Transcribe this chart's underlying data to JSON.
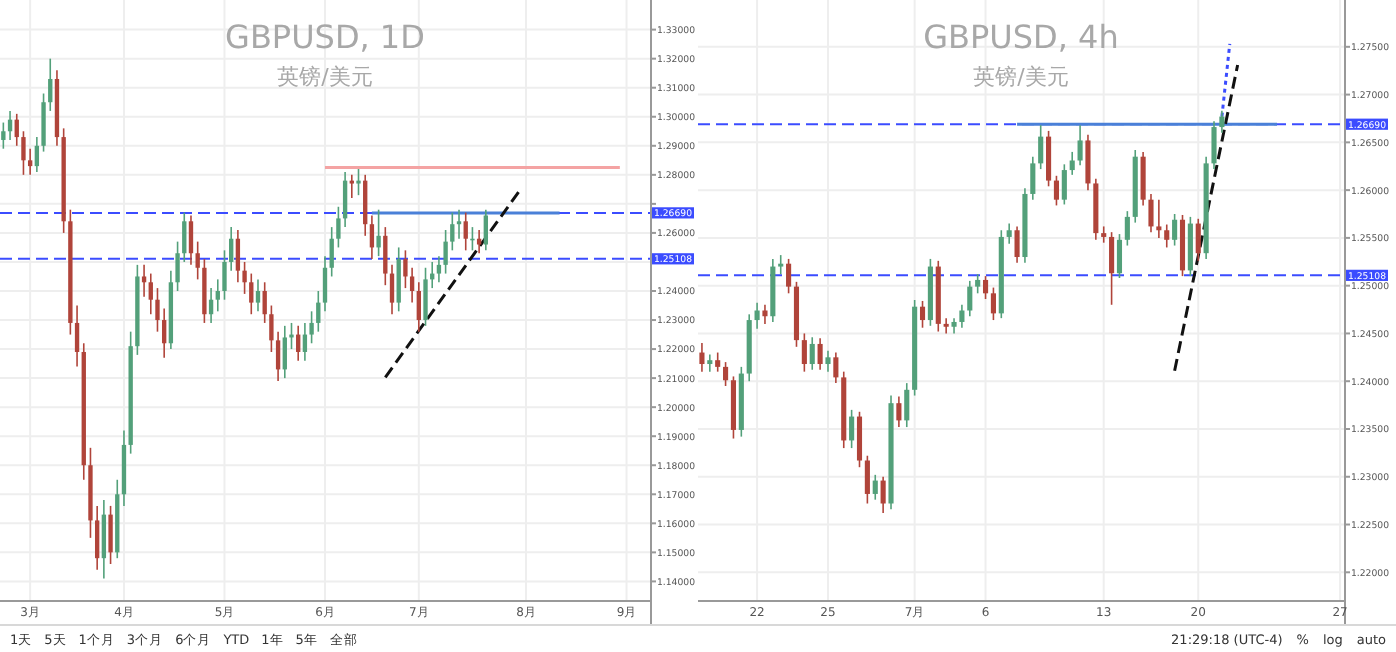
{
  "chart_data": [
    {
      "type": "candlestick",
      "title": "GBPUSD, 1D",
      "subtitle": "英镑/美元",
      "categories": [
        null,
        null,
        null,
        null,
        "3月",
        null,
        null,
        null,
        null,
        null,
        null,
        null,
        null,
        null,
        null,
        null,
        null,
        null,
        "4月",
        null,
        null,
        null,
        null,
        null,
        null,
        null,
        null,
        null,
        null,
        null,
        null,
        null,
        null,
        "5月",
        null,
        null,
        null,
        null,
        null,
        null,
        null,
        null,
        null,
        null,
        null,
        null,
        null,
        null,
        "6月",
        null,
        null,
        null,
        null,
        null,
        null,
        null,
        null,
        null,
        null,
        null,
        null,
        null,
        "7月",
        null,
        null,
        null,
        null,
        null,
        null,
        null,
        null,
        null,
        null,
        null,
        null,
        null,
        null,
        null,
        "8月",
        null,
        null,
        null,
        null,
        null,
        null,
        null,
        null,
        null,
        null,
        null,
        null,
        null,
        null,
        "9月",
        null,
        null,
        null
      ],
      "ohlc": [
        [
          1.292,
          1.298,
          1.289,
          1.295
        ],
        [
          1.295,
          1.302,
          1.292,
          1.299
        ],
        [
          1.299,
          1.301,
          1.29,
          1.293
        ],
        [
          1.293,
          1.295,
          1.28,
          1.285
        ],
        [
          1.285,
          1.289,
          1.28,
          1.283
        ],
        [
          1.283,
          1.293,
          1.281,
          1.29
        ],
        [
          1.29,
          1.308,
          1.288,
          1.305
        ],
        [
          1.305,
          1.32,
          1.302,
          1.313
        ],
        [
          1.313,
          1.316,
          1.29,
          1.293
        ],
        [
          1.293,
          1.296,
          1.26,
          1.264
        ],
        [
          1.264,
          1.268,
          1.225,
          1.229
        ],
        [
          1.229,
          1.235,
          1.214,
          1.219
        ],
        [
          1.219,
          1.222,
          1.175,
          1.18
        ],
        [
          1.18,
          1.186,
          1.155,
          1.161
        ],
        [
          1.161,
          1.166,
          1.144,
          1.148
        ],
        [
          1.148,
          1.168,
          1.141,
          1.163
        ],
        [
          1.163,
          1.166,
          1.146,
          1.15
        ],
        [
          1.15,
          1.175,
          1.148,
          1.17
        ],
        [
          1.17,
          1.192,
          1.166,
          1.187
        ],
        [
          1.187,
          1.226,
          1.184,
          1.221
        ],
        [
          1.221,
          1.249,
          1.218,
          1.245
        ],
        [
          1.245,
          1.249,
          1.238,
          1.243
        ],
        [
          1.243,
          1.246,
          1.232,
          1.237
        ],
        [
          1.237,
          1.241,
          1.226,
          1.23
        ],
        [
          1.23,
          1.234,
          1.217,
          1.222
        ],
        [
          1.222,
          1.247,
          1.22,
          1.243
        ],
        [
          1.243,
          1.257,
          1.24,
          1.253
        ],
        [
          1.253,
          1.267,
          1.25,
          1.264
        ],
        [
          1.264,
          1.266,
          1.249,
          1.253
        ],
        [
          1.253,
          1.257,
          1.244,
          1.248
        ],
        [
          1.248,
          1.251,
          1.229,
          1.232
        ],
        [
          1.232,
          1.241,
          1.229,
          1.237
        ],
        [
          1.237,
          1.244,
          1.233,
          1.24
        ],
        [
          1.24,
          1.254,
          1.237,
          1.25
        ],
        [
          1.25,
          1.262,
          1.247,
          1.258
        ],
        [
          1.258,
          1.261,
          1.243,
          1.247
        ],
        [
          1.247,
          1.25,
          1.239,
          1.243
        ],
        [
          1.243,
          1.246,
          1.232,
          1.236
        ],
        [
          1.236,
          1.244,
          1.233,
          1.24
        ],
        [
          1.24,
          1.243,
          1.229,
          1.232
        ],
        [
          1.232,
          1.235,
          1.219,
          1.223
        ],
        [
          1.223,
          1.226,
          1.209,
          1.213
        ],
        [
          1.213,
          1.228,
          1.21,
          1.224
        ],
        [
          1.224,
          1.229,
          1.22,
          1.225
        ],
        [
          1.225,
          1.228,
          1.216,
          1.219
        ],
        [
          1.219,
          1.229,
          1.216,
          1.225
        ],
        [
          1.225,
          1.233,
          1.222,
          1.229
        ],
        [
          1.229,
          1.24,
          1.226,
          1.236
        ],
        [
          1.236,
          1.252,
          1.233,
          1.248
        ],
        [
          1.248,
          1.262,
          1.245,
          1.258
        ],
        [
          1.258,
          1.269,
          1.255,
          1.265
        ],
        [
          1.265,
          1.281,
          1.262,
          1.278
        ],
        [
          1.278,
          1.28,
          1.272,
          1.277
        ],
        [
          1.277,
          1.282,
          1.273,
          1.278
        ],
        [
          1.278,
          1.28,
          1.259,
          1.263
        ],
        [
          1.263,
          1.266,
          1.251,
          1.255
        ],
        [
          1.255,
          1.268,
          1.252,
          1.259
        ],
        [
          1.259,
          1.262,
          1.242,
          1.246
        ],
        [
          1.246,
          1.249,
          1.232,
          1.236
        ],
        [
          1.236,
          1.255,
          1.233,
          1.251
        ],
        [
          1.251,
          1.254,
          1.241,
          1.245
        ],
        [
          1.245,
          1.248,
          1.236,
          1.24
        ],
        [
          1.24,
          1.243,
          1.226,
          1.23
        ],
        [
          1.23,
          1.248,
          1.228,
          1.244
        ],
        [
          1.244,
          1.25,
          1.241,
          1.246
        ],
        [
          1.246,
          1.252,
          1.243,
          1.249
        ],
        [
          1.249,
          1.261,
          1.246,
          1.257
        ],
        [
          1.257,
          1.267,
          1.254,
          1.263
        ],
        [
          1.263,
          1.268,
          1.258,
          1.264
        ],
        [
          1.264,
          1.267,
          1.254,
          1.258
        ],
        [
          1.258,
          1.262,
          1.254,
          1.258
        ],
        [
          1.258,
          1.261,
          1.253,
          1.256
        ],
        [
          1.256,
          1.268,
          1.254,
          1.266
        ],
        null,
        null,
        null,
        null,
        null,
        null,
        null,
        null,
        null,
        null,
        null,
        null,
        null,
        null,
        null,
        null,
        null,
        null,
        null,
        null,
        null,
        null,
        null,
        null
      ],
      "series": [
        {
          "type": "line",
          "color": "#f4a3a3",
          "line_style": "solid",
          "values": [
            null,
            null,
            null,
            null,
            null,
            null,
            null,
            null,
            null,
            null,
            null,
            null,
            null,
            null,
            null,
            null,
            null,
            null,
            null,
            null,
            null,
            null,
            null,
            null,
            null,
            null,
            null,
            null,
            null,
            null,
            null,
            null,
            null,
            null,
            null,
            null,
            null,
            null,
            null,
            null,
            null,
            null,
            null,
            null,
            null,
            null,
            null,
            null,
            1.2825,
            null,
            null,
            null,
            null,
            null,
            null,
            null,
            null,
            null,
            null,
            null,
            null,
            null,
            null,
            null,
            null,
            null,
            null,
            null,
            null,
            null,
            null,
            null,
            null,
            null,
            null,
            null,
            null,
            null,
            null,
            null,
            null,
            null,
            null,
            null,
            null,
            null,
            null,
            null,
            null,
            null,
            null,
            null,
            1.2825,
            null,
            null,
            null,
            null
          ]
        },
        {
          "type": "line",
          "color": "#4a80d8",
          "line_style": "solid",
          "values": [
            null,
            null,
            null,
            null,
            null,
            null,
            null,
            null,
            null,
            null,
            null,
            null,
            null,
            null,
            null,
            null,
            null,
            null,
            null,
            null,
            null,
            null,
            null,
            null,
            null,
            null,
            null,
            null,
            null,
            null,
            null,
            null,
            null,
            null,
            null,
            null,
            null,
            null,
            null,
            null,
            null,
            null,
            null,
            null,
            null,
            null,
            null,
            null,
            null,
            null,
            null,
            null,
            null,
            null,
            null,
            1.2669,
            null,
            null,
            null,
            null,
            null,
            null,
            null,
            null,
            null,
            null,
            null,
            null,
            null,
            null,
            null,
            null,
            null,
            null,
            null,
            null,
            null,
            null,
            null,
            null,
            null,
            null,
            null,
            1.2669,
            null,
            null,
            null,
            null,
            null,
            null,
            null,
            null,
            null,
            null,
            null,
            null,
            null
          ]
        },
        {
          "type": "line",
          "color": "#111111",
          "line_style": "dashed",
          "values": [
            null,
            null,
            null,
            null,
            null,
            null,
            null,
            null,
            null,
            null,
            null,
            null,
            null,
            null,
            null,
            null,
            null,
            null,
            null,
            null,
            null,
            null,
            null,
            null,
            null,
            null,
            null,
            null,
            null,
            null,
            null,
            null,
            null,
            null,
            null,
            null,
            null,
            null,
            null,
            null,
            null,
            null,
            null,
            null,
            null,
            null,
            null,
            null,
            null,
            null,
            null,
            null,
            null,
            null,
            null,
            null,
            null,
            1.2103,
            null,
            null,
            null,
            null,
            null,
            null,
            null,
            null,
            null,
            null,
            null,
            null,
            null,
            null,
            null,
            null,
            null,
            null,
            null,
            1.2744,
            null,
            null,
            null,
            null,
            null,
            null,
            null,
            null,
            null,
            null,
            null,
            null,
            null,
            null,
            null,
            null,
            null,
            null,
            null
          ]
        }
      ],
      "ref_lines": [
        {
          "axis": "y",
          "value": 1.2669,
          "label": "1.26690",
          "color": "#3b4cff",
          "line_style": "dashed"
        },
        {
          "axis": "y",
          "value": 1.25108,
          "label": "1.25108",
          "color": "#3b4cff",
          "line_style": "dashed"
        }
      ],
      "ylim": [
        1.1336,
        1.3402
      ],
      "yticks": [
        {
          "value": 1.14,
          "label": "1.14000"
        },
        {
          "value": 1.15,
          "label": "1.15000"
        },
        {
          "value": 1.16,
          "label": "1.16000"
        },
        {
          "value": 1.17,
          "label": "1.17000"
        },
        {
          "value": 1.18,
          "label": "1.18000"
        },
        {
          "value": 1.19,
          "label": "1.19000"
        },
        {
          "value": 1.2,
          "label": "1.20000"
        },
        {
          "value": 1.21,
          "label": "1.21000"
        },
        {
          "value": 1.22,
          "label": "1.22000"
        },
        {
          "value": 1.23,
          "label": "1.23000"
        },
        {
          "value": 1.24,
          "label": "1.24000"
        },
        {
          "value": 1.25,
          "label": null
        },
        {
          "value": 1.26,
          "label": "1.26000"
        },
        {
          "value": 1.27,
          "label": null
        },
        {
          "value": 1.28,
          "label": "1.28000"
        },
        {
          "value": 1.29,
          "label": "1.29000"
        },
        {
          "value": 1.3,
          "label": "1.30000"
        },
        {
          "value": 1.31,
          "label": "1.31000"
        },
        {
          "value": 1.32,
          "label": "1.32000"
        },
        {
          "value": 1.33,
          "label": "1.33000"
        }
      ],
      "grid": true,
      "annotations": [
        "1天",
        "5天",
        "1个月",
        "3个月",
        "6个月",
        "YTD",
        "1年",
        "5年",
        "全部"
      ]
    },
    {
      "type": "candlestick",
      "title": "GBPUSD, 4h",
      "subtitle": "英镑/美元",
      "categories": [
        null,
        null,
        null,
        null,
        null,
        null,
        null,
        "22",
        null,
        null,
        null,
        null,
        null,
        null,
        null,
        null,
        "25",
        null,
        null,
        null,
        null,
        null,
        null,
        null,
        null,
        null,
        null,
        "7月",
        null,
        null,
        null,
        null,
        null,
        null,
        null,
        null,
        "6",
        null,
        null,
        null,
        null,
        null,
        null,
        null,
        null,
        null,
        null,
        null,
        null,
        null,
        null,
        "13",
        null,
        null,
        null,
        null,
        null,
        null,
        null,
        null,
        null,
        null,
        null,
        "20",
        null,
        null,
        null,
        null,
        null,
        null,
        null,
        null,
        null,
        null,
        null,
        null,
        null,
        null,
        null,
        null,
        null,
        "27"
      ],
      "ohlc": [
        [
          1.243,
          1.244,
          1.241,
          1.2418
        ],
        [
          1.2418,
          1.2428,
          1.241,
          1.2422
        ],
        [
          1.2422,
          1.243,
          1.241,
          1.2415
        ],
        [
          1.2415,
          1.242,
          1.2395,
          1.2401
        ],
        [
          1.2401,
          1.2405,
          1.234,
          1.2349
        ],
        [
          1.2349,
          1.2415,
          1.2342,
          1.2408
        ],
        [
          1.2408,
          1.247,
          1.24,
          1.2464
        ],
        [
          1.2464,
          1.2482,
          1.2455,
          1.2474
        ],
        [
          1.2474,
          1.248,
          1.246,
          1.2468
        ],
        [
          1.2468,
          1.2528,
          1.2462,
          1.252
        ],
        [
          1.252,
          1.2532,
          1.2512,
          1.2523
        ],
        [
          1.2523,
          1.2528,
          1.2492,
          1.2499
        ],
        [
          1.2499,
          1.2504,
          1.2436,
          1.2443
        ],
        [
          1.2443,
          1.245,
          1.241,
          1.2418
        ],
        [
          1.2418,
          1.2446,
          1.2412,
          1.2439
        ],
        [
          1.2439,
          1.2445,
          1.2412,
          1.2418
        ],
        [
          1.2418,
          1.2432,
          1.241,
          1.2425
        ],
        [
          1.2425,
          1.243,
          1.2398,
          1.2404
        ],
        [
          1.2404,
          1.241,
          1.233,
          1.2338
        ],
        [
          1.2338,
          1.237,
          1.233,
          1.2363
        ],
        [
          1.2363,
          1.2368,
          1.231,
          1.2317
        ],
        [
          1.2317,
          1.2322,
          1.2272,
          1.2282
        ],
        [
          1.2282,
          1.2302,
          1.2276,
          1.2296
        ],
        [
          1.2296,
          1.23,
          1.2262,
          1.2272
        ],
        [
          1.2272,
          1.2385,
          1.2266,
          1.2377
        ],
        [
          1.2377,
          1.2384,
          1.2352,
          1.2359
        ],
        [
          1.2359,
          1.2398,
          1.2352,
          1.2391
        ],
        [
          1.2391,
          1.2485,
          1.2385,
          1.2478
        ],
        [
          1.2478,
          1.2484,
          1.2456,
          1.2464
        ],
        [
          1.2464,
          1.2528,
          1.2458,
          1.252
        ],
        [
          1.252,
          1.2526,
          1.2452,
          1.246
        ],
        [
          1.246,
          1.2466,
          1.245,
          1.2457
        ],
        [
          1.2457,
          1.2466,
          1.245,
          1.2462
        ],
        [
          1.2462,
          1.248,
          1.2456,
          1.2474
        ],
        [
          1.2474,
          1.2505,
          1.2468,
          1.2499
        ],
        [
          1.2499,
          1.2512,
          1.2492,
          1.2506
        ],
        [
          1.2506,
          1.251,
          1.2486,
          1.2492
        ],
        [
          1.2492,
          1.2498,
          1.2464,
          1.2471
        ],
        [
          1.2471,
          1.2558,
          1.2466,
          1.2551
        ],
        [
          1.2551,
          1.2565,
          1.2544,
          1.2558
        ],
        [
          1.2558,
          1.2562,
          1.2524,
          1.253
        ],
        [
          1.253,
          1.2602,
          1.2524,
          1.2596
        ],
        [
          1.2596,
          1.2635,
          1.259,
          1.2628
        ],
        [
          1.2628,
          1.2668,
          1.2622,
          1.2656
        ],
        [
          1.2656,
          1.2662,
          1.2604,
          1.261
        ],
        [
          1.261,
          1.2615,
          1.2584,
          1.259
        ],
        [
          1.259,
          1.2627,
          1.2585,
          1.2621
        ],
        [
          1.2621,
          1.264,
          1.2616,
          1.2631
        ],
        [
          1.2631,
          1.2668,
          1.2626,
          1.2652
        ],
        [
          1.2652,
          1.2658,
          1.26,
          1.2607
        ],
        [
          1.2607,
          1.2612,
          1.2548,
          1.2555
        ],
        [
          1.2555,
          1.2562,
          1.2545,
          1.2551
        ],
        [
          1.2551,
          1.2556,
          1.248,
          1.2513
        ],
        [
          1.2513,
          1.2554,
          1.2508,
          1.2548
        ],
        [
          1.2548,
          1.2578,
          1.2542,
          1.2572
        ],
        [
          1.2572,
          1.2642,
          1.2566,
          1.2635
        ],
        [
          1.2635,
          1.264,
          1.2584,
          1.259
        ],
        [
          1.259,
          1.2596,
          1.2556,
          1.2562
        ],
        [
          1.2562,
          1.259,
          1.255,
          1.2558
        ],
        [
          1.2558,
          1.2564,
          1.254,
          1.2548
        ],
        [
          1.2548,
          1.2575,
          1.2542,
          1.2569
        ],
        [
          1.2569,
          1.2574,
          1.251,
          1.2516
        ],
        [
          1.2516,
          1.2572,
          1.251,
          1.2565
        ],
        [
          1.2565,
          1.257,
          1.2526,
          1.2534
        ],
        [
          1.2534,
          1.2635,
          1.2528,
          1.2628
        ],
        [
          1.2628,
          1.2672,
          1.2622,
          1.2666
        ],
        [
          1.2666,
          1.2683,
          1.266,
          1.2677
        ],
        null,
        null,
        null,
        null,
        null,
        null,
        null,
        null,
        null,
        null,
        null,
        null,
        null,
        null,
        null
      ],
      "series": [
        {
          "type": "line",
          "color": "#4a80d8",
          "line_style": "solid",
          "values": [
            null,
            null,
            null,
            null,
            null,
            null,
            null,
            null,
            null,
            null,
            null,
            null,
            null,
            null,
            null,
            null,
            null,
            null,
            null,
            null,
            null,
            null,
            null,
            null,
            null,
            null,
            null,
            null,
            null,
            null,
            null,
            null,
            null,
            null,
            null,
            null,
            null,
            null,
            null,
            null,
            1.2669,
            null,
            null,
            null,
            null,
            null,
            null,
            null,
            null,
            null,
            null,
            null,
            null,
            null,
            null,
            null,
            null,
            null,
            null,
            null,
            null,
            null,
            null,
            null,
            null,
            null,
            null,
            null,
            null,
            null,
            null,
            null,
            null,
            1.2669,
            null,
            null,
            null,
            null,
            null,
            null,
            null,
            null
          ]
        },
        {
          "type": "line",
          "color": "#111111",
          "line_style": "dashed",
          "values": [
            null,
            null,
            null,
            null,
            null,
            null,
            null,
            null,
            null,
            null,
            null,
            null,
            null,
            null,
            null,
            null,
            null,
            null,
            null,
            null,
            null,
            null,
            null,
            null,
            null,
            null,
            null,
            null,
            null,
            null,
            null,
            null,
            null,
            null,
            null,
            null,
            null,
            null,
            null,
            null,
            null,
            null,
            null,
            null,
            null,
            null,
            null,
            null,
            null,
            null,
            null,
            null,
            null,
            null,
            null,
            null,
            null,
            null,
            null,
            null,
            1.2411,
            null,
            null,
            null,
            null,
            null,
            null,
            null,
            1.2731,
            null,
            null,
            null,
            null,
            null,
            null,
            null,
            null,
            null,
            null,
            null,
            null,
            null
          ]
        },
        {
          "type": "line",
          "color": "#3b4cff",
          "line_style": "dotted",
          "values": [
            null,
            null,
            null,
            null,
            null,
            null,
            null,
            null,
            null,
            null,
            null,
            null,
            null,
            null,
            null,
            null,
            null,
            null,
            null,
            null,
            null,
            null,
            null,
            null,
            null,
            null,
            null,
            null,
            null,
            null,
            null,
            null,
            null,
            null,
            null,
            null,
            null,
            null,
            null,
            null,
            null,
            null,
            null,
            null,
            null,
            null,
            null,
            null,
            null,
            null,
            null,
            null,
            null,
            null,
            null,
            null,
            null,
            null,
            null,
            null,
            null,
            null,
            null,
            null,
            null,
            null,
            1.2677,
            1.2753,
            null,
            null,
            null,
            null,
            null,
            null,
            null,
            null,
            null,
            null,
            null,
            null,
            null,
            null
          ]
        }
      ],
      "ref_lines": [
        {
          "axis": "y",
          "value": 1.2669,
          "label": "1.26690",
          "color": "#3b4cff",
          "line_style": "dashed"
        },
        {
          "axis": "y",
          "value": 1.25108,
          "label": "1.25108",
          "color": "#3b4cff",
          "line_style": "dashed"
        }
      ],
      "ylim": [
        1.2171,
        1.2799
      ],
      "yticks": [
        {
          "value": 1.22,
          "label": "1.22000"
        },
        {
          "value": 1.225,
          "label": "1.22500"
        },
        {
          "value": 1.23,
          "label": "1.23000"
        },
        {
          "value": 1.235,
          "label": "1.23500"
        },
        {
          "value": 1.24,
          "label": "1.24000"
        },
        {
          "value": 1.245,
          "label": "1.24500"
        },
        {
          "value": 1.25,
          "label": "1.25000"
        },
        {
          "value": 1.255,
          "label": "1.25500"
        },
        {
          "value": 1.26,
          "label": "1.26000"
        },
        {
          "value": 1.265,
          "label": "1.26500"
        },
        {
          "value": 1.27,
          "label": "1.27000"
        },
        {
          "value": 1.275,
          "label": "1.27500"
        }
      ],
      "grid": true,
      "annotations": [
        "21:29:18 (UTC-4)",
        "%",
        "log",
        "auto"
      ]
    }
  ]
}
